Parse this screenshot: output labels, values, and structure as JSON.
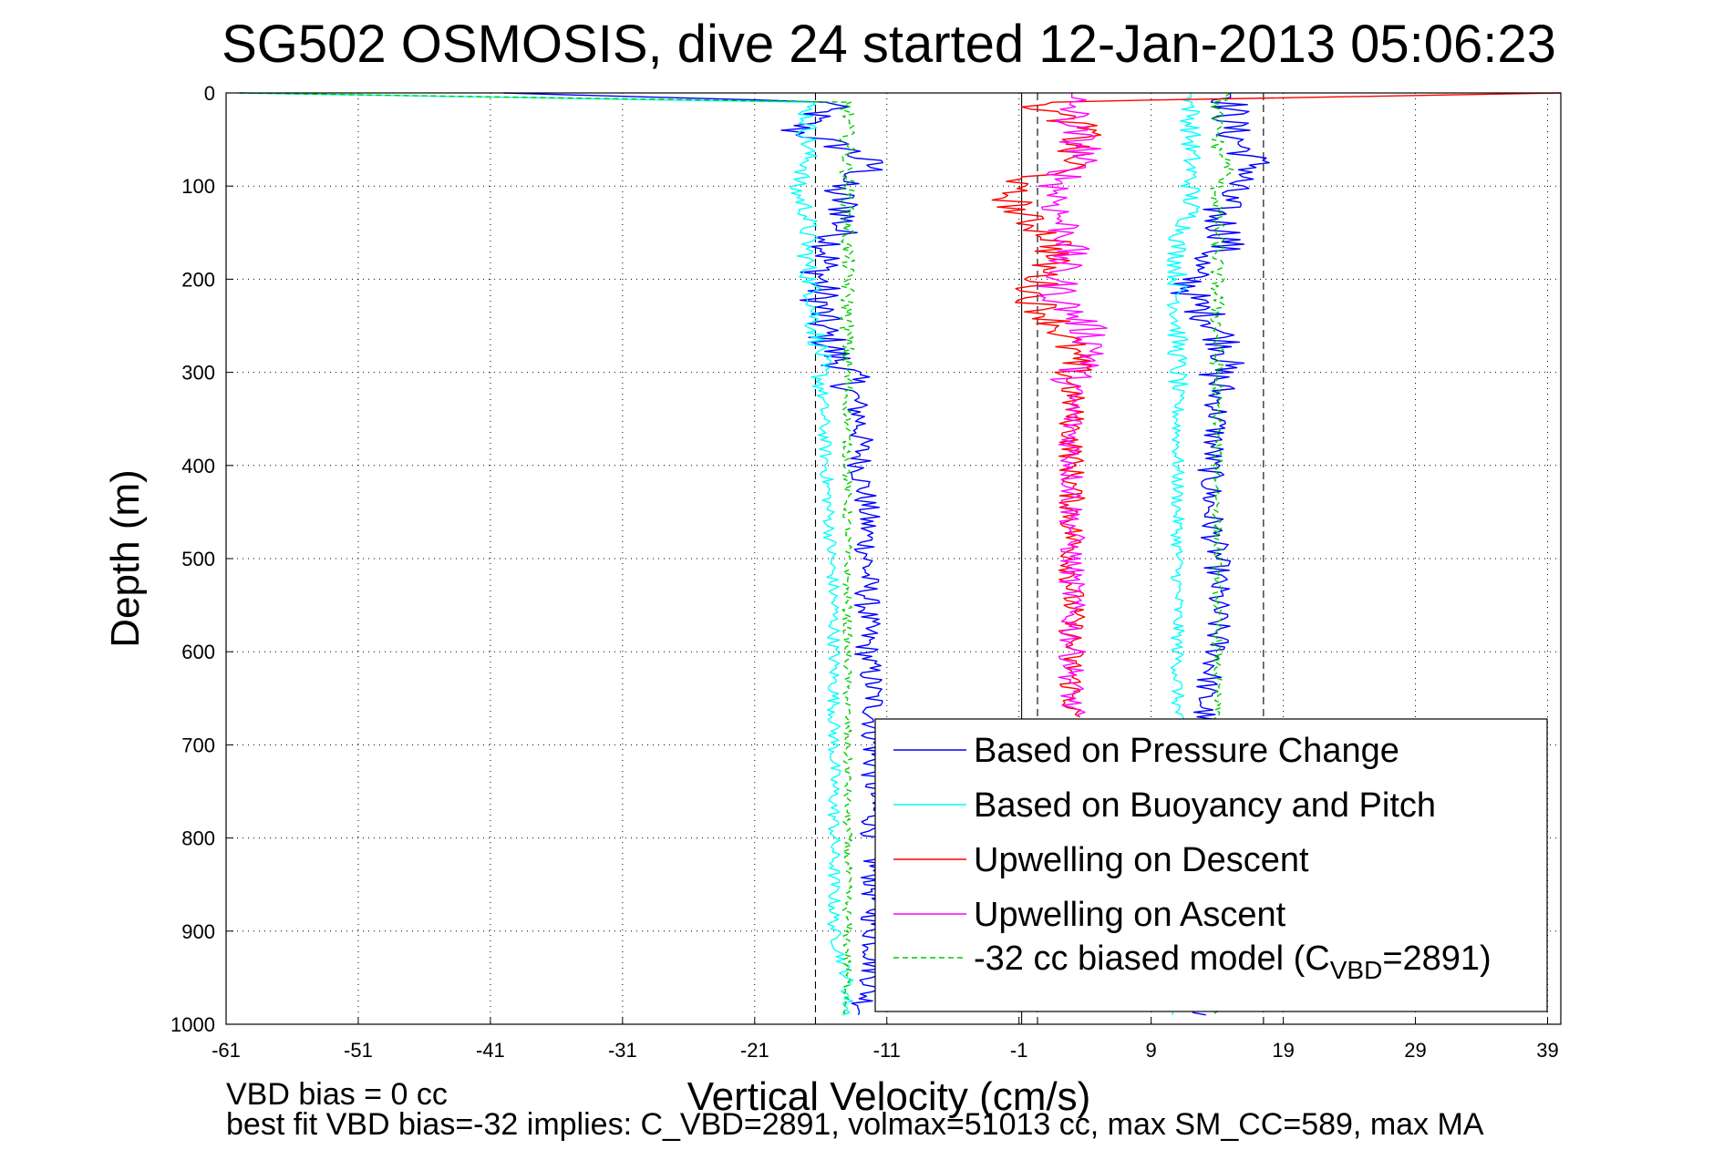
{
  "chart_data": {
    "type": "line",
    "title": "SG502 OSMOSIS, dive 24 started 12-Jan-2013 05:06:23",
    "xlabel": "Vertical Velocity (cm/s)",
    "ylabel": "Depth (m)",
    "xlim": [
      -61,
      40
    ],
    "ylim": [
      0,
      1000
    ],
    "y_reversed": true,
    "xticks": [
      "-61",
      "-51",
      "-41",
      "-31",
      "-21",
      "-11",
      "-1",
      "9",
      "19",
      "29",
      "39"
    ],
    "yticks": [
      "0",
      "100",
      "200",
      "300",
      "400",
      "500",
      "600",
      "700",
      "800",
      "900",
      "1000"
    ],
    "grid": "on",
    "legend_position": "bottom-right",
    "legend": [
      {
        "label": "Based on Pressure Change",
        "color": "#0000ff",
        "style": "solid"
      },
      {
        "label": "Based on Buoyancy and Pitch",
        "color": "#00ffff",
        "style": "solid"
      },
      {
        "label": "Upwelling on Descent",
        "color": "#ff0000",
        "style": "solid"
      },
      {
        "label": "Upwelling on Ascent",
        "color": "#ff00ff",
        "style": "solid"
      },
      {
        "label_prefix": "-32 cc biased model (C",
        "label_sub": "VBD",
        "label_suffix": "=2891)",
        "color": "#00cc00",
        "style": "dashed"
      }
    ],
    "reference_lines": [
      {
        "x": -16.4,
        "style": "dashed"
      },
      {
        "x": 0.4,
        "style": "dashed"
      },
      {
        "x": -0.8,
        "style": "solid"
      },
      {
        "x": 17.5,
        "style": "dashed"
      }
    ],
    "series": [
      {
        "name": "Based on Pressure Change",
        "color": "#0000ff",
        "depth": [
          0,
          10,
          40,
          60,
          80,
          100,
          130,
          160,
          190,
          220,
          250,
          280,
          300,
          350,
          400,
          450,
          500,
          550,
          600,
          650,
          700,
          750,
          800,
          850,
          900,
          950,
          990
        ],
        "descent": [
          -40,
          -15,
          -18,
          -14,
          -12,
          -15,
          -14,
          -15,
          -16,
          -16,
          -16,
          -15,
          -14,
          -13,
          -13,
          -12.5,
          -12.5,
          -12.5,
          -12.5,
          -12,
          -12,
          -12,
          -12,
          -12,
          -12,
          -12,
          -13
        ],
        "ascent": [
          15,
          15,
          15,
          16,
          17,
          15,
          14,
          15,
          12,
          12,
          14,
          15,
          14,
          14,
          13.5,
          13.5,
          14,
          14,
          14,
          13,
          13,
          13,
          13,
          13,
          13,
          13,
          13
        ]
      },
      {
        "name": "Based on Buoyancy and Pitch",
        "color": "#00ffff",
        "depth": [
          0,
          10,
          40,
          60,
          80,
          100,
          130,
          160,
          190,
          220,
          250,
          280,
          300,
          350,
          400,
          450,
          500,
          550,
          600,
          650,
          700,
          750,
          800,
          850,
          900,
          950,
          990
        ],
        "descent": [
          -60,
          -17,
          -17,
          -17,
          -17,
          -18,
          -17,
          -17,
          -17,
          -16.5,
          -16.5,
          -16,
          -16,
          -15.8,
          -15.6,
          -15.4,
          -15.2,
          -15,
          -15,
          -15,
          -15,
          -15,
          -15,
          -15,
          -15,
          -14,
          -14
        ],
        "ascent": [
          12,
          12,
          12,
          12,
          12,
          12,
          12,
          11,
          11,
          11,
          11,
          11,
          11,
          11,
          11,
          11,
          11,
          11,
          11,
          11,
          11,
          11,
          11,
          11,
          11,
          11,
          11
        ]
      },
      {
        "name": "Upwelling on Descent",
        "color": "#ff0000",
        "depth": [
          0,
          10,
          40,
          60,
          80,
          100,
          130,
          160,
          190,
          220,
          250,
          280,
          300,
          350,
          400,
          450,
          500,
          550,
          600,
          650,
          670
        ],
        "values": [
          40,
          0,
          4,
          3,
          3,
          -2,
          -1,
          2,
          1,
          0,
          2,
          3,
          3,
          3,
          3,
          3,
          3,
          3,
          3,
          3,
          3
        ]
      },
      {
        "name": "Upwelling on Ascent",
        "color": "#ff00ff",
        "depth": [
          0,
          10,
          40,
          60,
          80,
          100,
          130,
          160,
          190,
          220,
          250,
          280,
          300,
          350,
          400,
          450,
          500,
          550,
          600,
          650,
          670
        ],
        "values": [
          3,
          3,
          3,
          4,
          3,
          2,
          2,
          3,
          2,
          2,
          4,
          5,
          3,
          3,
          3,
          3,
          3,
          3,
          3,
          3,
          3
        ]
      },
      {
        "name": "-32 cc biased model (CVBD=2891)",
        "color": "#00cc00",
        "dashed": true,
        "depth": [
          0,
          10,
          40,
          60,
          80,
          100,
          130,
          160,
          190,
          220,
          250,
          280,
          300,
          350,
          400,
          450,
          500,
          550,
          600,
          650,
          700,
          750,
          800,
          850,
          900,
          950,
          990
        ],
        "descent": [
          -60,
          -14,
          -14,
          -14,
          -14,
          -14,
          -14,
          -14,
          -14,
          -14,
          -14,
          -14,
          -14,
          -14,
          -14,
          -14,
          -14,
          -14,
          -14,
          -14,
          -14,
          -14,
          -14,
          -14,
          -14,
          -14,
          -14
        ],
        "ascent": [
          15,
          14,
          14,
          14,
          15,
          14,
          14,
          14,
          14,
          14,
          14,
          14,
          14,
          14,
          14,
          14,
          14,
          14,
          14,
          14,
          14,
          14,
          14,
          14,
          14,
          14,
          14
        ]
      }
    ],
    "annotations": [
      "VBD bias = 0 cc",
      "best fit VBD bias=-32 implies: C_VBD=2891, volmax=51013 cc, max SM_CC=589, max MA"
    ]
  }
}
